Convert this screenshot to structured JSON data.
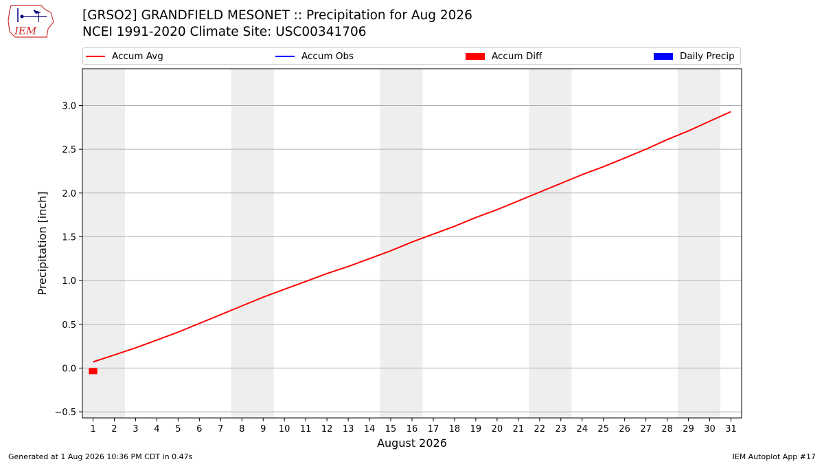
{
  "header": {
    "title_line1": "[GRSO2] GRANDFIELD MESONET :: Precipitation for Aug 2026",
    "title_line2": "NCEI 1991-2020 Climate Site: USC00341706",
    "logo_text": "IEM"
  },
  "legend": [
    {
      "label": "Accum Avg",
      "kind": "line",
      "color": "#ff0000"
    },
    {
      "label": "Accum Obs",
      "kind": "line",
      "color": "#0000ff"
    },
    {
      "label": "Accum Diff",
      "kind": "box",
      "color": "#ff0000"
    },
    {
      "label": "Daily Precip",
      "kind": "box",
      "color": "#0000ff"
    }
  ],
  "footer": {
    "left": "Generated at 1 Aug 2026 10:36 PM CDT in 0.47s",
    "right": "IEM Autoplot App #17"
  },
  "chart_data": {
    "type": "line",
    "xlabel": "August 2026",
    "ylabel": "Precipitation [inch]",
    "x": [
      1,
      2,
      3,
      4,
      5,
      6,
      7,
      8,
      9,
      10,
      11,
      12,
      13,
      14,
      15,
      16,
      17,
      18,
      19,
      20,
      21,
      22,
      23,
      24,
      25,
      26,
      27,
      28,
      29,
      30,
      31
    ],
    "xlim": [
      0.5,
      31.5
    ],
    "ylim": [
      -0.57,
      3.42
    ],
    "yticks": [
      -0.5,
      0.0,
      0.5,
      1.0,
      1.5,
      2.0,
      2.5,
      3.0
    ],
    "ytick_labels": [
      "−0.5",
      "0.0",
      "0.5",
      "1.0",
      "1.5",
      "2.0",
      "2.5",
      "3.0"
    ],
    "grid": "horizontal",
    "weekend_shading": [
      [
        0.5,
        2.5
      ],
      [
        7.5,
        9.5
      ],
      [
        14.5,
        16.5
      ],
      [
        21.5,
        23.5
      ],
      [
        28.5,
        30.5
      ]
    ],
    "series": [
      {
        "name": "Accum Avg",
        "color": "#ff0000",
        "values": [
          0.07,
          0.15,
          0.23,
          0.32,
          0.41,
          0.51,
          0.61,
          0.71,
          0.81,
          0.9,
          0.99,
          1.08,
          1.16,
          1.25,
          1.34,
          1.44,
          1.53,
          1.62,
          1.72,
          1.81,
          1.91,
          2.01,
          2.11,
          2.21,
          2.3,
          2.4,
          2.5,
          2.61,
          2.71,
          2.82,
          2.93
        ]
      },
      {
        "name": "Accum Diff",
        "type": "bar",
        "color": "#ff0000",
        "x": [
          1
        ],
        "values": [
          -0.07
        ]
      }
    ]
  }
}
